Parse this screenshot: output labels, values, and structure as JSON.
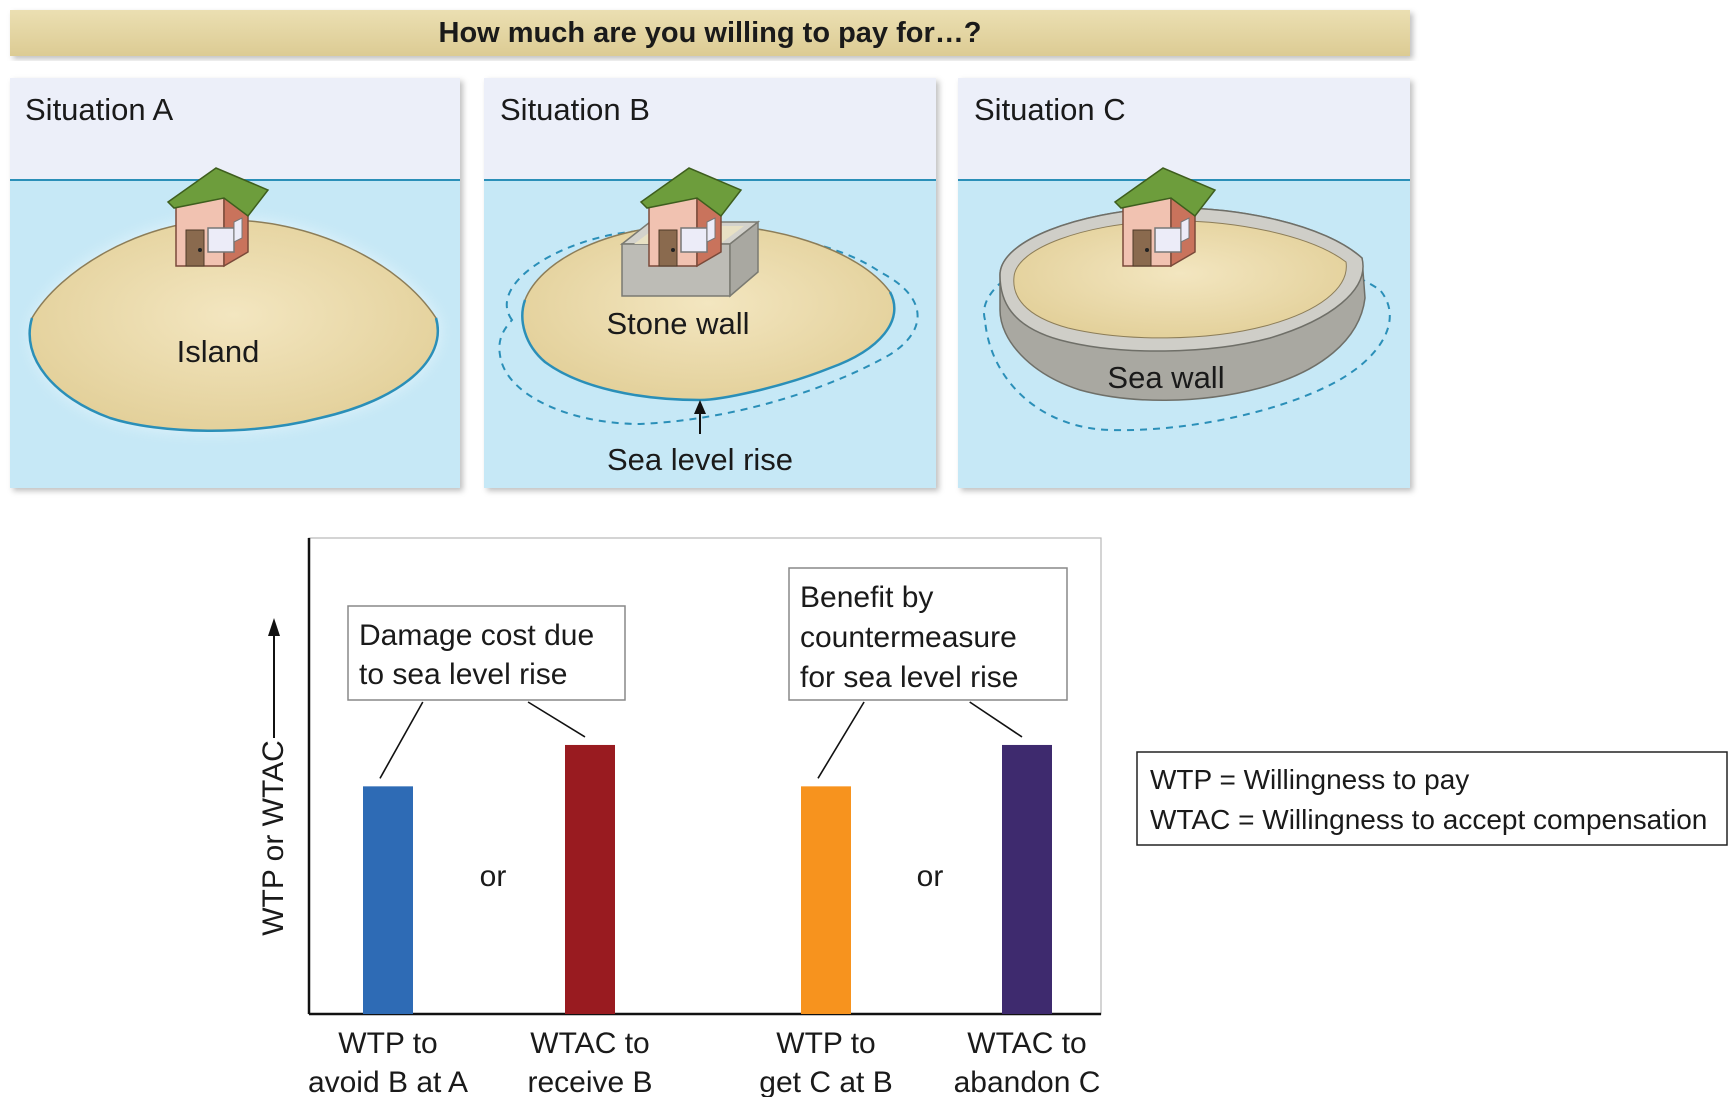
{
  "header": {
    "title": "How much are you willing to pay for…?"
  },
  "situations": [
    {
      "id": "A",
      "title": "Situation A",
      "labels": [
        "Island"
      ]
    },
    {
      "id": "B",
      "title": "Situation B",
      "labels": [
        "Stone wall",
        "Sea level rise"
      ]
    },
    {
      "id": "C",
      "title": "Situation C",
      "labels": [
        "Sea wall"
      ]
    }
  ],
  "chart_data": {
    "type": "bar",
    "ylabel": "WTP or WTAC",
    "categories": [
      [
        "WTP to",
        "avoid B at A"
      ],
      [
        "WTAC to",
        "receive B"
      ],
      [
        "WTP to",
        "get C at B"
      ],
      [
        "WTAC to",
        "abandon C"
      ]
    ],
    "values": [
      2.2,
      2.6,
      2.2,
      2.6
    ],
    "ylim": [
      0,
      4.6
    ],
    "bar_colors": [
      "#2e6bb5",
      "#991b20",
      "#f7931e",
      "#3e2a6e"
    ],
    "separators": [
      "or",
      "or"
    ],
    "annotations": [
      {
        "lines": [
          "Damage cost due",
          "to sea level rise"
        ],
        "bars": [
          0,
          1
        ]
      },
      {
        "lines": [
          "Benefit by",
          "countermeasure",
          "for sea level rise"
        ],
        "bars": [
          2,
          3
        ]
      }
    ],
    "grid": false
  },
  "legend": {
    "lines": [
      "WTP = Willingness to pay",
      "WTAC = Willingness to accept compensation"
    ]
  },
  "colors": {
    "header_bg": "#e6d8a7",
    "sky": "#eceff9",
    "water": "#c6e8f6",
    "waterline": "#2a8fb8",
    "sand": "#ecdcae",
    "wall": "#bdbcb6",
    "roof": "#6d9d3c",
    "house_wall": "#f1c2b1"
  }
}
